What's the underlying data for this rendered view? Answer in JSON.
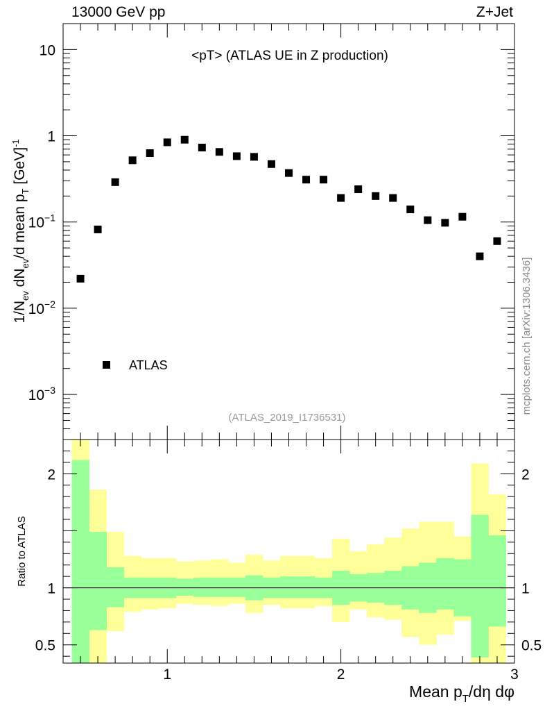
{
  "header": {
    "energy": "13000 GeV pp",
    "process": "Z+Jet"
  },
  "chart_data": [
    {
      "type": "scatter",
      "panel": "main",
      "title": "<pT> (ATLAS UE in Z production)",
      "analysis_id": "(ATLAS_2019_I1736531)",
      "ylabel": "1/N_ev dN_ev/d mean p_T [GeV]^-1",
      "yscale": "log",
      "xlim": [
        0.4,
        3.0
      ],
      "ylim": [
        0.0003,
        20
      ],
      "y_ticks": [
        {
          "value": 10,
          "label": "10",
          "exp": ""
        },
        {
          "value": 1,
          "label": "1",
          "exp": ""
        },
        {
          "value": 0.1,
          "label": "10",
          "exp": "−1"
        },
        {
          "value": 0.01,
          "label": "10",
          "exp": "−2"
        },
        {
          "value": 0.001,
          "label": "10",
          "exp": "−3"
        }
      ],
      "legend": [
        {
          "name": "ATLAS",
          "marker": "square",
          "color": "#000000"
        }
      ],
      "series": [
        {
          "name": "ATLAS",
          "x": [
            0.5,
            0.6,
            0.7,
            0.8,
            0.9,
            1.0,
            1.1,
            1.2,
            1.3,
            1.4,
            1.5,
            1.6,
            1.7,
            1.8,
            1.9,
            2.0,
            2.1,
            2.2,
            2.3,
            2.4,
            2.5,
            2.6,
            2.7,
            2.8,
            2.9
          ],
          "y": [
            0.022,
            0.082,
            0.29,
            0.52,
            0.63,
            0.84,
            0.9,
            0.73,
            0.65,
            0.58,
            0.57,
            0.47,
            0.37,
            0.31,
            0.31,
            0.19,
            0.24,
            0.2,
            0.19,
            0.14,
            0.105,
            0.098,
            0.115,
            0.04,
            0.06
          ]
        }
      ]
    },
    {
      "type": "area",
      "panel": "ratio",
      "ylabel": "Ratio to ATLAS",
      "xlabel": "Mean p_T/dη dφ",
      "xlim": [
        0.4,
        3.0
      ],
      "ylim": [
        0.34,
        2.3
      ],
      "x_ticks": [
        {
          "value": 1,
          "label": "1"
        },
        {
          "value": 2,
          "label": "2"
        },
        {
          "value": 3,
          "label": "3"
        }
      ],
      "y_ticks": [
        {
          "value": 2,
          "label": "2"
        },
        {
          "value": 1,
          "label": "1"
        },
        {
          "value": 0.5,
          "label": "0.5"
        }
      ],
      "bin_edges": [
        0.45,
        0.55,
        0.65,
        0.75,
        0.85,
        0.95,
        1.05,
        1.15,
        1.25,
        1.35,
        1.45,
        1.55,
        1.65,
        1.75,
        1.85,
        1.95,
        2.05,
        2.15,
        2.25,
        2.35,
        2.45,
        2.55,
        2.65,
        2.75,
        2.85,
        2.95
      ],
      "reference_line": 1.0,
      "bands": [
        {
          "name": "total uncertainty",
          "color": "#ffff99",
          "upper": [
            2.35,
            1.86,
            1.49,
            1.28,
            1.26,
            1.26,
            1.23,
            1.24,
            1.25,
            1.22,
            1.29,
            1.24,
            1.28,
            1.28,
            1.26,
            1.43,
            1.32,
            1.38,
            1.44,
            1.52,
            1.58,
            1.58,
            1.45,
            2.09,
            1.82
          ],
          "lower": [
            0.34,
            0.34,
            0.62,
            0.79,
            0.81,
            0.82,
            0.86,
            0.85,
            0.84,
            0.86,
            0.78,
            0.85,
            0.82,
            0.82,
            0.84,
            0.7,
            0.81,
            0.74,
            0.72,
            0.57,
            0.5,
            0.59,
            0.71,
            0.34,
            0.34
          ]
        },
        {
          "name": "statistical uncertainty",
          "color": "#99ff99",
          "upper": [
            2.12,
            1.49,
            1.18,
            1.09,
            1.09,
            1.09,
            1.08,
            1.09,
            1.09,
            1.09,
            1.11,
            1.09,
            1.1,
            1.1,
            1.09,
            1.15,
            1.12,
            1.13,
            1.15,
            1.19,
            1.22,
            1.26,
            1.25,
            1.64,
            1.46
          ],
          "lower": [
            0.34,
            0.63,
            0.83,
            0.91,
            0.91,
            0.91,
            0.93,
            0.92,
            0.92,
            0.92,
            0.89,
            0.91,
            0.91,
            0.91,
            0.91,
            0.85,
            0.88,
            0.87,
            0.85,
            0.81,
            0.78,
            0.81,
            0.75,
            0.39,
            0.66
          ]
        }
      ]
    }
  ],
  "watermark": "mcplots.cern.ch [arXiv:1306.3436]"
}
